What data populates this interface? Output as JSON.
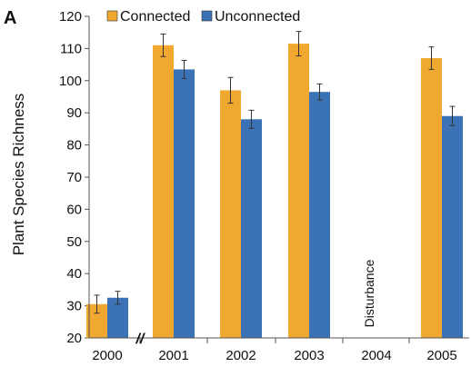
{
  "chart_data": {
    "type": "bar",
    "panel_label": "A",
    "ylabel": "Plant Species Richness",
    "xlabel": "",
    "ylim": [
      20,
      120
    ],
    "yticks": [
      20,
      30,
      40,
      50,
      60,
      70,
      80,
      90,
      100,
      110,
      120
    ],
    "categories": [
      "2000",
      "2001",
      "2002",
      "2003",
      "2004",
      "2005"
    ],
    "series": [
      {
        "name": "Connected",
        "color": "#f0a830",
        "values": [
          30.5,
          111,
          97,
          111.5,
          null,
          107
        ],
        "errors": [
          2.8,
          3.5,
          4,
          3.8,
          null,
          3.5
        ]
      },
      {
        "name": "Unconnected",
        "color": "#3a72b5",
        "values": [
          32.5,
          103.5,
          88,
          96.5,
          null,
          89
        ],
        "errors": [
          2,
          2.8,
          2.8,
          2.5,
          null,
          3
        ]
      }
    ],
    "annotations": [
      {
        "category": "2004",
        "text": "Disturbance"
      }
    ],
    "axis_break_symbol": "//",
    "legend_position": "top-left",
    "grid": false
  }
}
